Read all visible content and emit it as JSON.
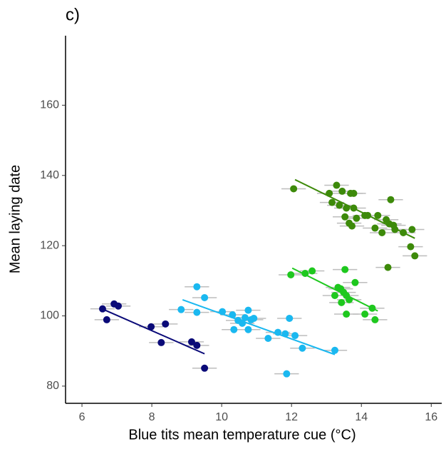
{
  "chart_data": {
    "type": "scatter",
    "title": "c)",
    "x_label": "Blue tits mean temperature cue (°C)",
    "y_label": "Mean laying date",
    "xlim": [
      5.53,
      16.3
    ],
    "ylim": [
      75.1,
      179.8
    ],
    "xticks": [
      6,
      8,
      10,
      12,
      14,
      16
    ],
    "yticks": [
      80,
      100,
      120,
      140,
      160
    ],
    "grid": false,
    "series": [
      {
        "color": "#0a0a78",
        "xerr": 0.35,
        "x": [
          6.59,
          6.71,
          6.92,
          7.04,
          7.98,
          8.27,
          8.39,
          9.14,
          9.29,
          9.51
        ],
        "values": [
          102.0,
          98.9,
          103.4,
          102.8,
          96.9,
          92.4,
          97.7,
          92.6,
          91.6,
          85.1
        ],
        "fit": {
          "x": [
            6.53,
            9.51
          ],
          "values": [
            102.2,
            89.2
          ]
        }
      },
      {
        "color": "#1ab8f0",
        "xerr": 0.35,
        "x": [
          9.29,
          9.51,
          8.84,
          9.29,
          10.02,
          10.31,
          10.35,
          10.47,
          10.59,
          10.67,
          10.76,
          10.76,
          10.84,
          10.92,
          11.33,
          11.61,
          11.82,
          11.86,
          11.94,
          12.1,
          12.31,
          13.24
        ],
        "values": [
          108.3,
          105.2,
          101.8,
          101.0,
          101.2,
          100.3,
          96.1,
          98.7,
          97.9,
          99.5,
          101.6,
          96.1,
          98.9,
          99.3,
          93.6,
          95.3,
          94.9,
          83.5,
          99.3,
          94.4,
          90.8,
          90.2
        ],
        "fit": {
          "x": [
            8.88,
            13.24
          ],
          "values": [
            104.6,
            89.0
          ]
        }
      },
      {
        "color": "#1ec81e",
        "xerr": 0.35,
        "x": [
          11.98,
          12.39,
          12.59,
          13.53,
          13.82,
          13.33,
          13.24,
          13.41,
          13.49,
          13.57,
          13.43,
          13.57,
          13.65,
          14.1,
          14.31,
          14.39
        ],
        "values": [
          111.7,
          112.1,
          112.8,
          113.2,
          109.5,
          108.1,
          105.8,
          107.7,
          106.7,
          105.8,
          103.8,
          100.5,
          104.6,
          100.5,
          102.2,
          98.9
        ],
        "fit": {
          "x": [
            12.02,
            14.47
          ],
          "values": [
            113.6,
            101.4
          ]
        }
      },
      {
        "color": "#3d8a0a",
        "xerr": 0.35,
        "x": [
          12.06,
          13.29,
          13.08,
          13.45,
          13.69,
          13.78,
          13.16,
          13.37,
          13.57,
          13.78,
          13.53,
          13.86,
          13.65,
          13.73,
          14.1,
          14.18,
          14.47,
          14.39,
          14.59,
          14.71,
          14.8,
          14.84,
          14.96,
          14.76,
          15.2,
          15.45,
          15.41,
          15.53,
          14.92
        ],
        "values": [
          136.2,
          137.2,
          134.9,
          135.5,
          134.9,
          134.9,
          132.3,
          131.5,
          130.7,
          130.7,
          128.2,
          127.8,
          126.4,
          125.6,
          128.6,
          128.6,
          128.6,
          125.0,
          123.7,
          127.4,
          126.2,
          133.1,
          124.6,
          113.8,
          123.7,
          124.6,
          119.7,
          117.1,
          125.8
        ],
        "fit": {
          "x": [
            12.1,
            15.53
          ],
          "values": [
            138.8,
            122.1
          ]
        }
      }
    ]
  }
}
